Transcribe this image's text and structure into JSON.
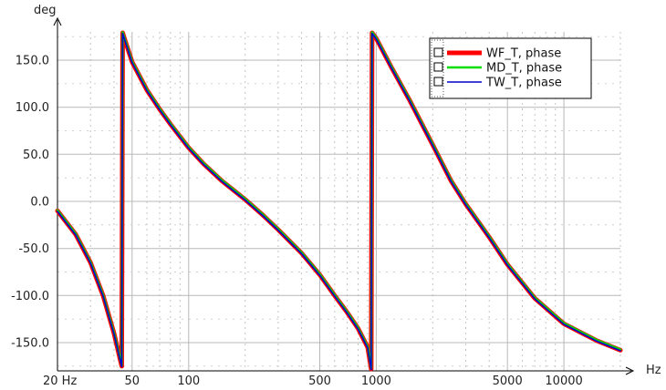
{
  "chart_data": {
    "type": "line",
    "xlabel": "Hz",
    "ylabel": "deg",
    "xscale": "log",
    "xlim": [
      20,
      20000
    ],
    "ylim": [
      -180,
      180
    ],
    "grid": true,
    "legend_position": "top-right",
    "x_ticks": [
      {
        "value": 20,
        "label": "20 Hz"
      },
      {
        "value": 50,
        "label": "50"
      },
      {
        "value": 100,
        "label": "100"
      },
      {
        "value": 500,
        "label": "500"
      },
      {
        "value": 1000,
        "label": "1000"
      },
      {
        "value": 5000,
        "label": "5000"
      },
      {
        "value": 10000,
        "label": "10000"
      }
    ],
    "y_ticks": [
      {
        "value": 150,
        "label": "150.0"
      },
      {
        "value": 100,
        "label": "100.0"
      },
      {
        "value": 50,
        "label": "50.0"
      },
      {
        "value": 0,
        "label": "0.0"
      },
      {
        "value": -50,
        "label": "-50.0"
      },
      {
        "value": -100,
        "label": "-100.0"
      },
      {
        "value": -150,
        "label": "-150.0"
      }
    ],
    "x": [
      20,
      25,
      30,
      35,
      40,
      44,
      44.5,
      46,
      50,
      60,
      70,
      80,
      100,
      120,
      150,
      200,
      250,
      300,
      400,
      500,
      600,
      700,
      800,
      900,
      940,
      950,
      1000,
      1200,
      1500,
      2000,
      2500,
      3000,
      4000,
      5000,
      7000,
      10000,
      15000,
      20000
    ],
    "y_base": [
      -10,
      -35,
      -65,
      -100,
      -140,
      -175,
      179,
      170,
      148,
      118,
      98,
      82,
      57,
      40,
      22,
      2,
      -15,
      -30,
      -55,
      -78,
      -100,
      -118,
      -135,
      -155,
      -178,
      179,
      173,
      143,
      108,
      60,
      22,
      -3,
      -38,
      -67,
      -103,
      -130,
      -148,
      -158
    ],
    "series": [
      {
        "name": "WF_T, phase",
        "color": "#ff0000",
        "offset": 0
      },
      {
        "name": "MD_T, phase",
        "color": "#00dd00",
        "offset": 0.6
      },
      {
        "name": "TW_T, phase",
        "color": "#0000cc",
        "offset": -0.6
      }
    ]
  }
}
